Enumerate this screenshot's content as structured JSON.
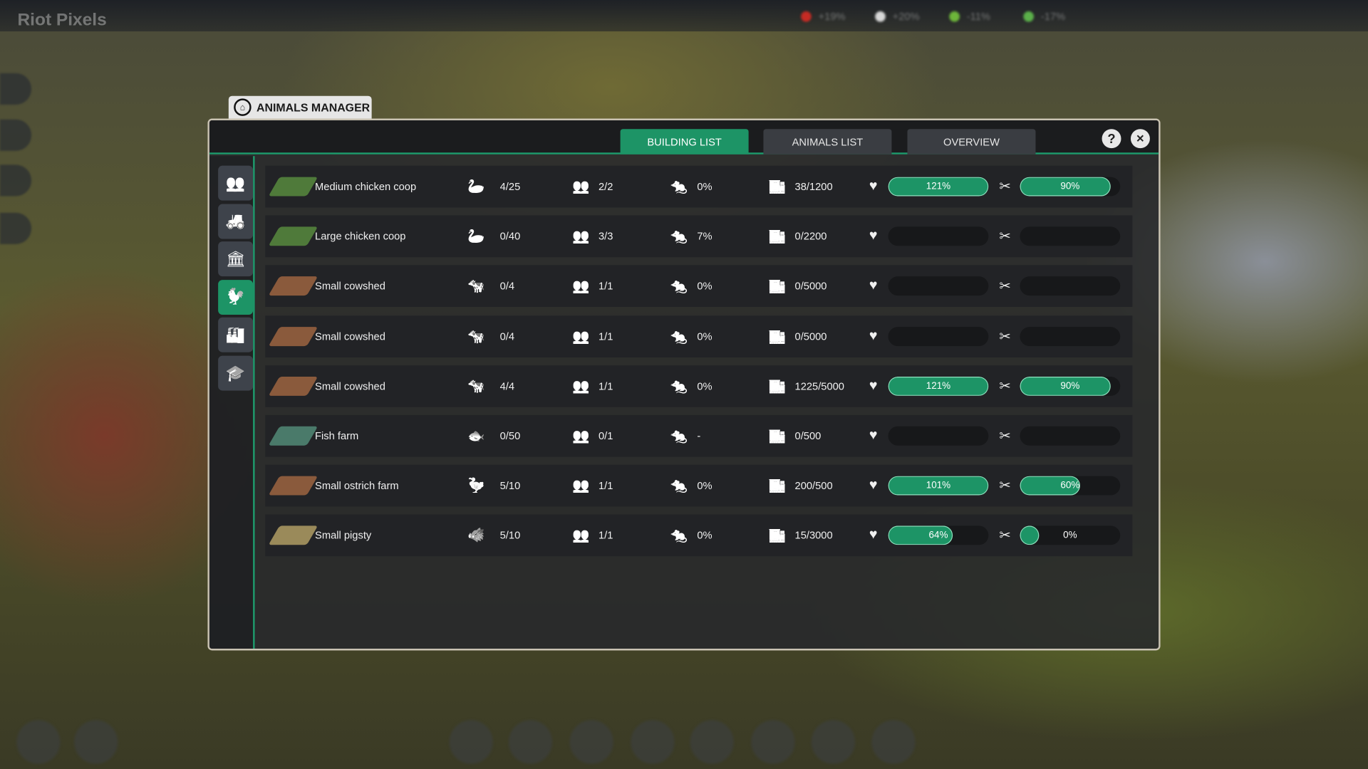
{
  "hud": {
    "stats": [
      {
        "value": "+19%",
        "color": "#c62b24"
      },
      {
        "value": "+20%",
        "color": "#d8d8d8"
      },
      {
        "value": "-11%",
        "color": "#6db53a"
      },
      {
        "value": "-17%",
        "color": "#5bb04a"
      }
    ],
    "watermark": "Riot Pixels"
  },
  "window": {
    "title": "ANIMALS MANAGER",
    "icon": "home-icon"
  },
  "tabs": [
    {
      "label": "BUILDING LIST",
      "active": true
    },
    {
      "label": "ANIMALS LIST",
      "active": false
    },
    {
      "label": "OVERVIEW",
      "active": false
    }
  ],
  "buttons": {
    "help": "?",
    "close": "✕"
  },
  "sidebar": [
    {
      "icon": "workers-icon",
      "glyph": "👥",
      "active": false
    },
    {
      "icon": "farm-fields-icon",
      "glyph": "🚜",
      "active": false
    },
    {
      "icon": "bank-icon",
      "glyph": "🏛",
      "active": false
    },
    {
      "icon": "animals-icon",
      "glyph": "🐓",
      "active": true
    },
    {
      "icon": "factory-icon",
      "glyph": "🏭",
      "active": false
    },
    {
      "icon": "education-icon",
      "glyph": "🎓",
      "active": false
    }
  ],
  "colors": {
    "accent": "#1d9466",
    "thumb_coop": "#4f7a3a",
    "thumb_shed": "#8a5a3c",
    "thumb_fish": "#4a7a6a",
    "thumb_pig": "#9a8a5a"
  },
  "rows": [
    {
      "name": "Medium chicken coop",
      "animal_icon": "goose-icon",
      "glyph": "🦢",
      "animals": "4/25",
      "workers": "2/2",
      "pests": "0%",
      "storage": "38/1200",
      "health": 121,
      "health_label": "121%",
      "food": 90,
      "food_label": "90%",
      "thumb": "coop"
    },
    {
      "name": "Large chicken coop",
      "animal_icon": "goose-icon",
      "glyph": "🦢",
      "animals": "0/40",
      "workers": "3/3",
      "pests": "7%",
      "storage": "0/2200",
      "health": null,
      "health_label": "",
      "food": null,
      "food_label": "",
      "thumb": "coop"
    },
    {
      "name": "Small cowshed",
      "animal_icon": "cow-icon",
      "glyph": "🐄",
      "animals": "0/4",
      "workers": "1/1",
      "pests": "0%",
      "storage": "0/5000",
      "health": null,
      "health_label": "",
      "food": null,
      "food_label": "",
      "thumb": "shed"
    },
    {
      "name": "Small cowshed",
      "animal_icon": "cow-icon",
      "glyph": "🐄",
      "animals": "0/4",
      "workers": "1/1",
      "pests": "0%",
      "storage": "0/5000",
      "health": null,
      "health_label": "",
      "food": null,
      "food_label": "",
      "thumb": "shed"
    },
    {
      "name": "Small cowshed",
      "animal_icon": "cow-icon",
      "glyph": "🐄",
      "animals": "4/4",
      "workers": "1/1",
      "pests": "0%",
      "storage": "1225/5000",
      "health": 121,
      "health_label": "121%",
      "food": 90,
      "food_label": "90%",
      "thumb": "shed"
    },
    {
      "name": "Fish farm",
      "animal_icon": "fish-icon",
      "glyph": "🐟",
      "animals": "0/50",
      "workers": "0/1",
      "pests": "-",
      "storage": "0/500",
      "health": null,
      "health_label": "",
      "food": null,
      "food_label": "",
      "thumb": "fish"
    },
    {
      "name": "Small ostrich farm",
      "animal_icon": "ostrich-icon",
      "glyph": "🦤",
      "animals": "5/10",
      "workers": "1/1",
      "pests": "0%",
      "storage": "200/500",
      "health": 101,
      "health_label": "101%",
      "food": 60,
      "food_label": "60%",
      "thumb": "shed"
    },
    {
      "name": "Small pigsty",
      "animal_icon": "pig-icon",
      "glyph": "🐗",
      "animals": "5/10",
      "workers": "1/1",
      "pests": "0%",
      "storage": "15/3000",
      "health": 64,
      "health_label": "64%",
      "food": 0,
      "food_label": "0%",
      "thumb": "pig"
    }
  ]
}
